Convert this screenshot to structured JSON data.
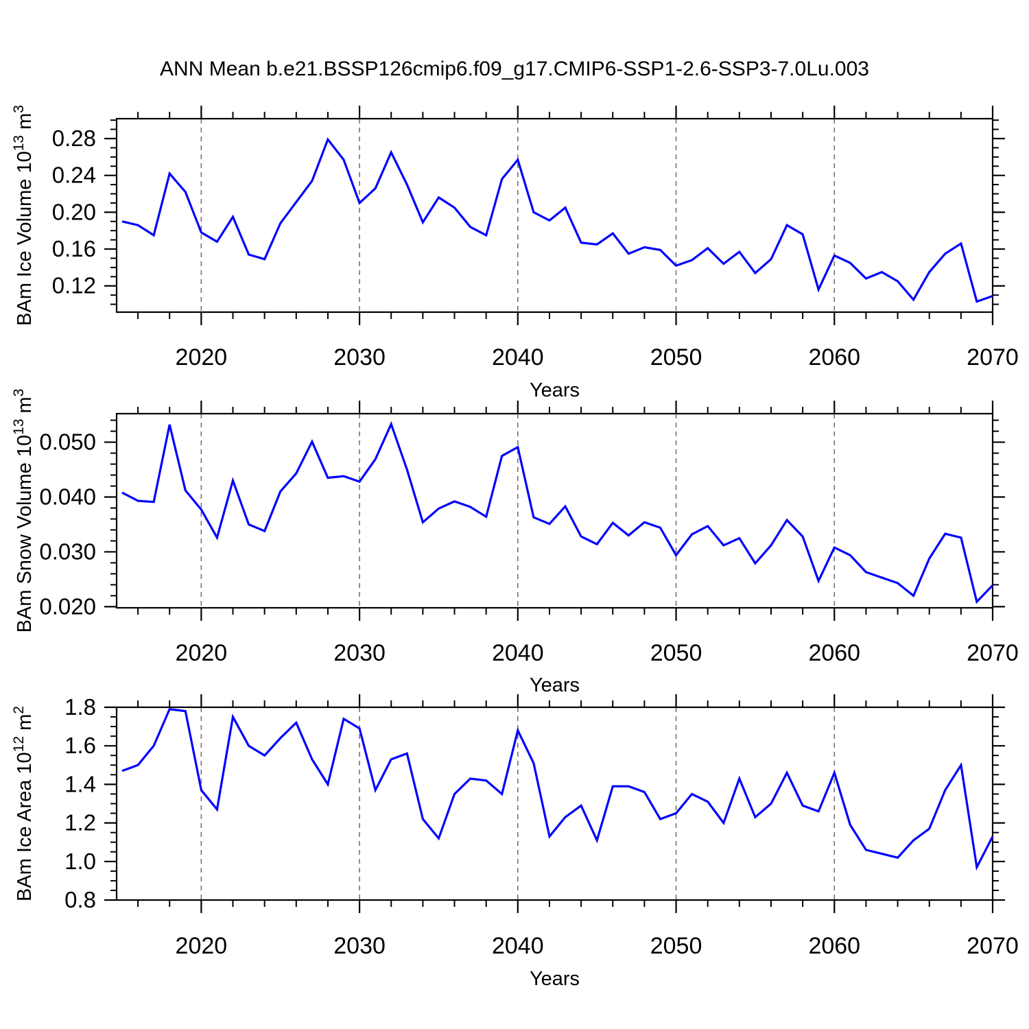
{
  "title": "ANN Mean b.e21.BSSP126cmip6.f09_g17.CMIP6-SSP1-2.6-SSP3-7.0Lu.003",
  "colors": {
    "line": "#0000ff",
    "grid": "#737373",
    "axis": "#000000",
    "text": "#000000",
    "background": "#ffffff"
  },
  "x_axis": {
    "label": "Years",
    "range": [
      2015,
      2070
    ],
    "major_tick_years": [
      2020,
      2030,
      2040,
      2050,
      2060,
      2070
    ],
    "major_tick_labels": [
      "2020",
      "2030",
      "2040",
      "2050",
      "2060",
      "2070"
    ],
    "gridline_years": [
      2020,
      2030,
      2040,
      2050,
      2060
    ],
    "minor_step_years": 2,
    "grid_style": "dashed"
  },
  "years": [
    2015,
    2016,
    2017,
    2018,
    2019,
    2020,
    2021,
    2022,
    2023,
    2024,
    2025,
    2026,
    2027,
    2028,
    2029,
    2030,
    2031,
    2032,
    2033,
    2034,
    2035,
    2036,
    2037,
    2038,
    2039,
    2040,
    2041,
    2042,
    2043,
    2044,
    2045,
    2046,
    2047,
    2048,
    2049,
    2050,
    2051,
    2052,
    2053,
    2054,
    2055,
    2056,
    2057,
    2058,
    2059,
    2060,
    2061,
    2062,
    2063,
    2064,
    2065,
    2066,
    2067,
    2068,
    2069,
    2070
  ],
  "chart_data": [
    {
      "type": "line",
      "name": "BAm Ice Volume",
      "ylabel_parts": [
        {
          "text": "BAm Ice Volume 10"
        },
        {
          "text": "13",
          "sup": true
        },
        {
          "text": " m"
        },
        {
          "text": "3",
          "sup": true
        }
      ],
      "ylim": [
        0.0915,
        0.3016
      ],
      "yticks": [
        {
          "value": 0.28,
          "label": "0.28"
        },
        {
          "value": 0.24,
          "label": "0.24"
        },
        {
          "value": 0.2,
          "label": "0.20"
        },
        {
          "value": 0.16,
          "label": "0.16"
        },
        {
          "value": 0.12,
          "label": "0.12"
        }
      ],
      "minor_ticks": {
        "start": 0.1,
        "end": 0.3,
        "step": 0.01
      },
      "values": [
        0.19,
        0.186,
        0.175,
        0.242,
        0.222,
        0.178,
        0.168,
        0.195,
        0.154,
        0.149,
        0.188,
        0.211,
        0.234,
        0.279,
        0.257,
        0.21,
        0.226,
        0.265,
        0.23,
        0.189,
        0.216,
        0.205,
        0.184,
        0.175,
        0.236,
        0.257,
        0.2,
        0.191,
        0.205,
        0.167,
        0.165,
        0.177,
        0.155,
        0.162,
        0.159,
        0.142,
        0.148,
        0.161,
        0.144,
        0.157,
        0.134,
        0.149,
        0.186,
        0.176,
        0.116,
        0.153,
        0.145,
        0.128,
        0.135,
        0.125,
        0.105,
        0.135,
        0.155,
        0.166,
        0.103,
        0.109
      ]
    },
    {
      "type": "line",
      "name": "BAm Snow Volume",
      "ylabel_parts": [
        {
          "text": "BAm Snow Volume 10"
        },
        {
          "text": "13",
          "sup": true
        },
        {
          "text": " m"
        },
        {
          "text": "3",
          "sup": true
        }
      ],
      "ylim": [
        0.0198,
        0.0552
      ],
      "yticks": [
        {
          "value": 0.05,
          "label": "0.050"
        },
        {
          "value": 0.04,
          "label": "0.040"
        },
        {
          "value": 0.03,
          "label": "0.030"
        },
        {
          "value": 0.02,
          "label": "0.020"
        }
      ],
      "minor_ticks": {
        "start": 0.022,
        "end": 0.054,
        "step": 0.002
      },
      "values": [
        0.0408,
        0.0393,
        0.0391,
        0.0532,
        0.0412,
        0.0377,
        0.0326,
        0.043,
        0.035,
        0.0338,
        0.041,
        0.0443,
        0.0501,
        0.0435,
        0.0438,
        0.0428,
        0.0469,
        0.0533,
        0.045,
        0.0354,
        0.0379,
        0.0392,
        0.0382,
        0.0364,
        0.0475,
        0.0491,
        0.0363,
        0.0351,
        0.0383,
        0.0328,
        0.0314,
        0.0353,
        0.033,
        0.0354,
        0.0344,
        0.0294,
        0.0332,
        0.0347,
        0.0312,
        0.0325,
        0.0279,
        0.0312,
        0.0358,
        0.0328,
        0.0247,
        0.0308,
        0.0294,
        0.0263,
        0.0253,
        0.0243,
        0.022,
        0.0288,
        0.0333,
        0.0326,
        0.0209,
        0.0239
      ]
    },
    {
      "type": "line",
      "name": "BAm Ice Area",
      "ylabel_parts": [
        {
          "text": "BAm Ice Area 10"
        },
        {
          "text": "12",
          "sup": true
        },
        {
          "text": " m"
        },
        {
          "text": "2",
          "sup": true
        }
      ],
      "ylim": [
        0.8,
        1.8
      ],
      "yticks": [
        {
          "value": 1.8,
          "label": "1.8"
        },
        {
          "value": 1.6,
          "label": "1.6"
        },
        {
          "value": 1.4,
          "label": "1.4"
        },
        {
          "value": 1.2,
          "label": "1.2"
        },
        {
          "value": 1.0,
          "label": "1.0"
        },
        {
          "value": 0.8,
          "label": "0.8"
        }
      ],
      "minor_ticks": {
        "start": 0.85,
        "end": 1.75,
        "step": 0.05
      },
      "values": [
        1.47,
        1.5,
        1.6,
        1.79,
        1.78,
        1.37,
        1.27,
        1.75,
        1.6,
        1.55,
        1.64,
        1.72,
        1.53,
        1.4,
        1.74,
        1.69,
        1.37,
        1.53,
        1.56,
        1.22,
        1.12,
        1.35,
        1.43,
        1.42,
        1.35,
        1.68,
        1.51,
        1.13,
        1.23,
        1.29,
        1.11,
        1.39,
        1.39,
        1.36,
        1.22,
        1.25,
        1.35,
        1.31,
        1.2,
        1.43,
        1.23,
        1.3,
        1.46,
        1.29,
        1.26,
        1.46,
        1.19,
        1.06,
        1.04,
        1.02,
        1.11,
        1.17,
        1.37,
        1.5,
        0.97,
        1.13
      ]
    }
  ]
}
